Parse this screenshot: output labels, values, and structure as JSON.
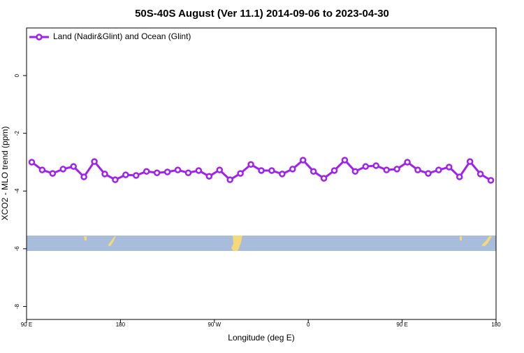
{
  "chart_data": {
    "type": "line",
    "title": "50S-40S August (Ver 11.1)   2014-09-06 to 2023-04-30",
    "xlabel": "Longitude (deg E)",
    "ylabel": "XCO2 - MLO trend (ppm)",
    "x": [
      95,
      105,
      115,
      125,
      135,
      145,
      155,
      165,
      175,
      185,
      195,
      205,
      215,
      225,
      235,
      245,
      255,
      265,
      275,
      285,
      295,
      305,
      315,
      325,
      335,
      345,
      355,
      365,
      375,
      385,
      395,
      405,
      415,
      425,
      435,
      445,
      455,
      465,
      475,
      485,
      495,
      505,
      515,
      525,
      535
    ],
    "series": [
      {
        "name": "Land (Nadir&Glint) and Ocean (Glint)",
        "color": "#a020f0",
        "values": [
          -3.0,
          -3.27,
          -3.39,
          -3.24,
          -3.15,
          -3.51,
          -2.98,
          -3.41,
          -3.61,
          -3.44,
          -3.46,
          -3.32,
          -3.37,
          -3.34,
          -3.27,
          -3.37,
          -3.29,
          -3.49,
          -3.27,
          -3.61,
          -3.39,
          -3.08,
          -3.29,
          -3.29,
          -3.41,
          -3.24,
          -2.93,
          -3.32,
          -3.56,
          -3.29,
          -2.93,
          -3.32,
          -3.15,
          -3.12,
          -3.27,
          -3.24,
          -3.0,
          -3.27,
          -3.39,
          -3.27,
          -3.17,
          -3.51,
          -2.98,
          -3.41,
          -3.63
        ]
      }
    ],
    "xlim": [
      90,
      540
    ],
    "xticks": [
      {
        "value": 90,
        "label": "90 E"
      },
      180,
      {
        "value": 270,
        "label": "90 W"
      },
      {
        "value": 360,
        "label": "0"
      },
      {
        "value": 450,
        "label": "90 E"
      },
      {
        "value": 540,
        "label": "180"
      }
    ],
    "ylim": [
      -8.45,
      1.65
    ],
    "yticks": [
      0,
      -2,
      -4,
      -6,
      -8
    ],
    "legend": "top-left"
  }
}
